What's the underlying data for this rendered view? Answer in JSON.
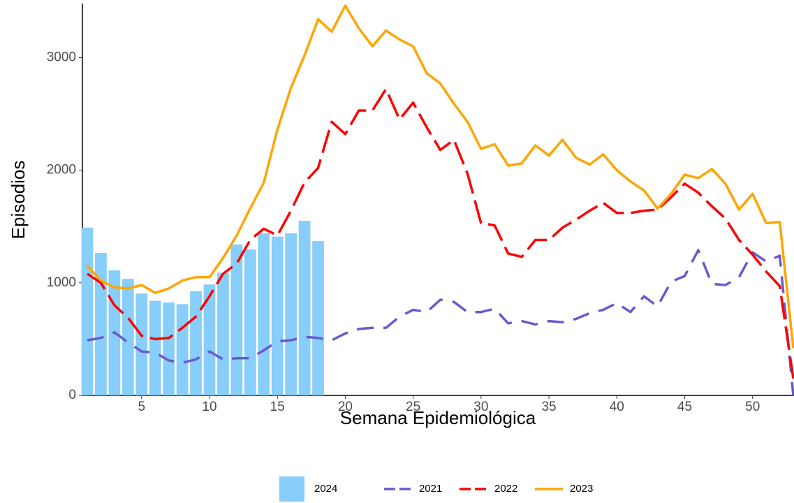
{
  "chart_data": {
    "type": "line",
    "x_label": "Semana Epidemiológica",
    "y_label": "Episodios",
    "xlim": [
      0.64,
      53.05
    ],
    "ylim": [
      0,
      3480
    ],
    "xticks": [
      5,
      10,
      15,
      20,
      25,
      30,
      35,
      40,
      45,
      50
    ],
    "yticks": [
      0,
      1000,
      2000,
      3000
    ],
    "x": [
      1,
      2,
      3,
      4,
      5,
      6,
      7,
      8,
      9,
      10,
      11,
      12,
      13,
      14,
      15,
      16,
      17,
      18,
      19,
      20,
      21,
      22,
      23,
      24,
      25,
      26,
      27,
      28,
      29,
      30,
      31,
      32,
      33,
      34,
      35,
      36,
      37,
      38,
      39,
      40,
      41,
      42,
      43,
      44,
      45,
      46,
      47,
      48,
      49,
      50,
      51,
      52,
      53
    ],
    "series": [
      {
        "name": "2024",
        "type": "bar",
        "color": "#87cefa",
        "values": [
          1490,
          1265,
          1110,
          1035,
          905,
          840,
          825,
          810,
          925,
          985,
          1090,
          1340,
          1295,
          1440,
          1410,
          1440,
          1550,
          1370,
          null,
          null,
          null,
          null,
          null,
          null,
          null,
          null,
          null,
          null,
          null,
          null,
          null,
          null,
          null,
          null,
          null,
          null,
          null,
          null,
          null,
          null,
          null,
          null,
          null,
          null,
          null,
          null,
          null,
          null,
          null,
          null,
          null,
          null,
          null
        ]
      },
      {
        "name": "2021",
        "type": "line",
        "color": "#6a5acd",
        "dash": "24 14",
        "values": [
          490,
          510,
          560,
          470,
          390,
          380,
          310,
          290,
          320,
          390,
          320,
          330,
          330,
          400,
          480,
          490,
          520,
          510,
          490,
          550,
          590,
          600,
          600,
          700,
          760,
          740,
          850,
          830,
          740,
          740,
          770,
          640,
          660,
          630,
          660,
          650,
          680,
          730,
          760,
          820,
          740,
          880,
          790,
          1010,
          1060,
          1290,
          990,
          980,
          1050,
          1270,
          1190,
          1240,
          0
        ]
      },
      {
        "name": "2022",
        "type": "line",
        "color": "#ff0000",
        "dash": "34 10",
        "values": [
          1080,
          1000,
          800,
          690,
          530,
          500,
          510,
          600,
          700,
          880,
          1080,
          1170,
          1380,
          1480,
          1420,
          1640,
          1890,
          2020,
          2430,
          2320,
          2530,
          2530,
          2720,
          2450,
          2600,
          2380,
          2180,
          2270,
          1970,
          1530,
          1510,
          1260,
          1230,
          1380,
          1380,
          1490,
          1560,
          1640,
          1710,
          1620,
          1620,
          1640,
          1650,
          1760,
          1880,
          1800,
          1680,
          1570,
          1380,
          1250,
          1100,
          970,
          150
        ]
      },
      {
        "name": "2023",
        "type": "line",
        "color": "#ffa500",
        "dash": "none",
        "values": [
          1150,
          1020,
          960,
          950,
          980,
          910,
          950,
          1020,
          1050,
          1050,
          1220,
          1420,
          1660,
          1890,
          2360,
          2730,
          3020,
          3340,
          3230,
          3460,
          3260,
          3100,
          3240,
          3160,
          3100,
          2860,
          2770,
          2590,
          2430,
          2190,
          2230,
          2040,
          2060,
          2220,
          2130,
          2270,
          2110,
          2050,
          2140,
          2000,
          1900,
          1820,
          1660,
          1790,
          1960,
          1930,
          2010,
          1880,
          1650,
          1790,
          1530,
          1540,
          420
        ]
      }
    ]
  }
}
